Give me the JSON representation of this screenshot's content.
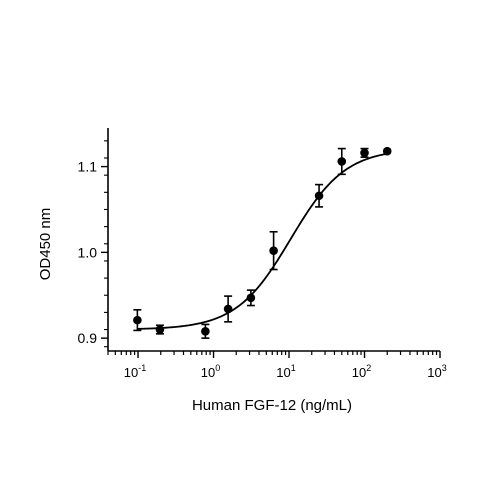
{
  "chart_data": {
    "type": "scatter",
    "xlabel": "Human FGF-12 (ng/mL)",
    "ylabel": "OD450 nm",
    "x_scale": "log",
    "xlim": [
      0.04,
      1000
    ],
    "ylim": [
      0.885,
      1.145
    ],
    "x_ticks": [
      {
        "value": 0.1,
        "base": "10",
        "exp": "-1"
      },
      {
        "value": 1,
        "base": "10",
        "exp": "0"
      },
      {
        "value": 10,
        "base": "10",
        "exp": "1"
      },
      {
        "value": 100,
        "base": "10",
        "exp": "2"
      },
      {
        "value": 1000,
        "base": "10",
        "exp": "3"
      }
    ],
    "y_ticks": [
      {
        "value": 0.9,
        "label": "0.9"
      },
      {
        "value": 1.0,
        "label": "1.0"
      },
      {
        "value": 1.1,
        "label": "1.1"
      }
    ],
    "grid": false,
    "legend": "none",
    "series": [
      {
        "points": [
          {
            "x": 0.098,
            "y": 0.921,
            "err": 0.012
          },
          {
            "x": 0.195,
            "y": 0.91,
            "err": 0.005
          },
          {
            "x": 0.78,
            "y": 0.908,
            "err": 0.008
          },
          {
            "x": 1.56,
            "y": 0.934,
            "err": 0.015
          },
          {
            "x": 3.125,
            "y": 0.947,
            "err": 0.009
          },
          {
            "x": 6.25,
            "y": 1.002,
            "err": 0.022
          },
          {
            "x": 25,
            "y": 1.066,
            "err": 0.013
          },
          {
            "x": 50,
            "y": 1.106,
            "err": 0.015
          },
          {
            "x": 100,
            "y": 1.116,
            "err": 0.005
          },
          {
            "x": 200,
            "y": 1.118,
            "err": 0
          }
        ],
        "fit": {
          "bottom": 0.91,
          "top": 1.121,
          "ec50": 10.5,
          "hill": 1.2,
          "x_range": [
            0.098,
            200
          ]
        }
      }
    ],
    "colors": {
      "marker": "#000000",
      "line": "#000000",
      "axis": "#000000"
    }
  }
}
